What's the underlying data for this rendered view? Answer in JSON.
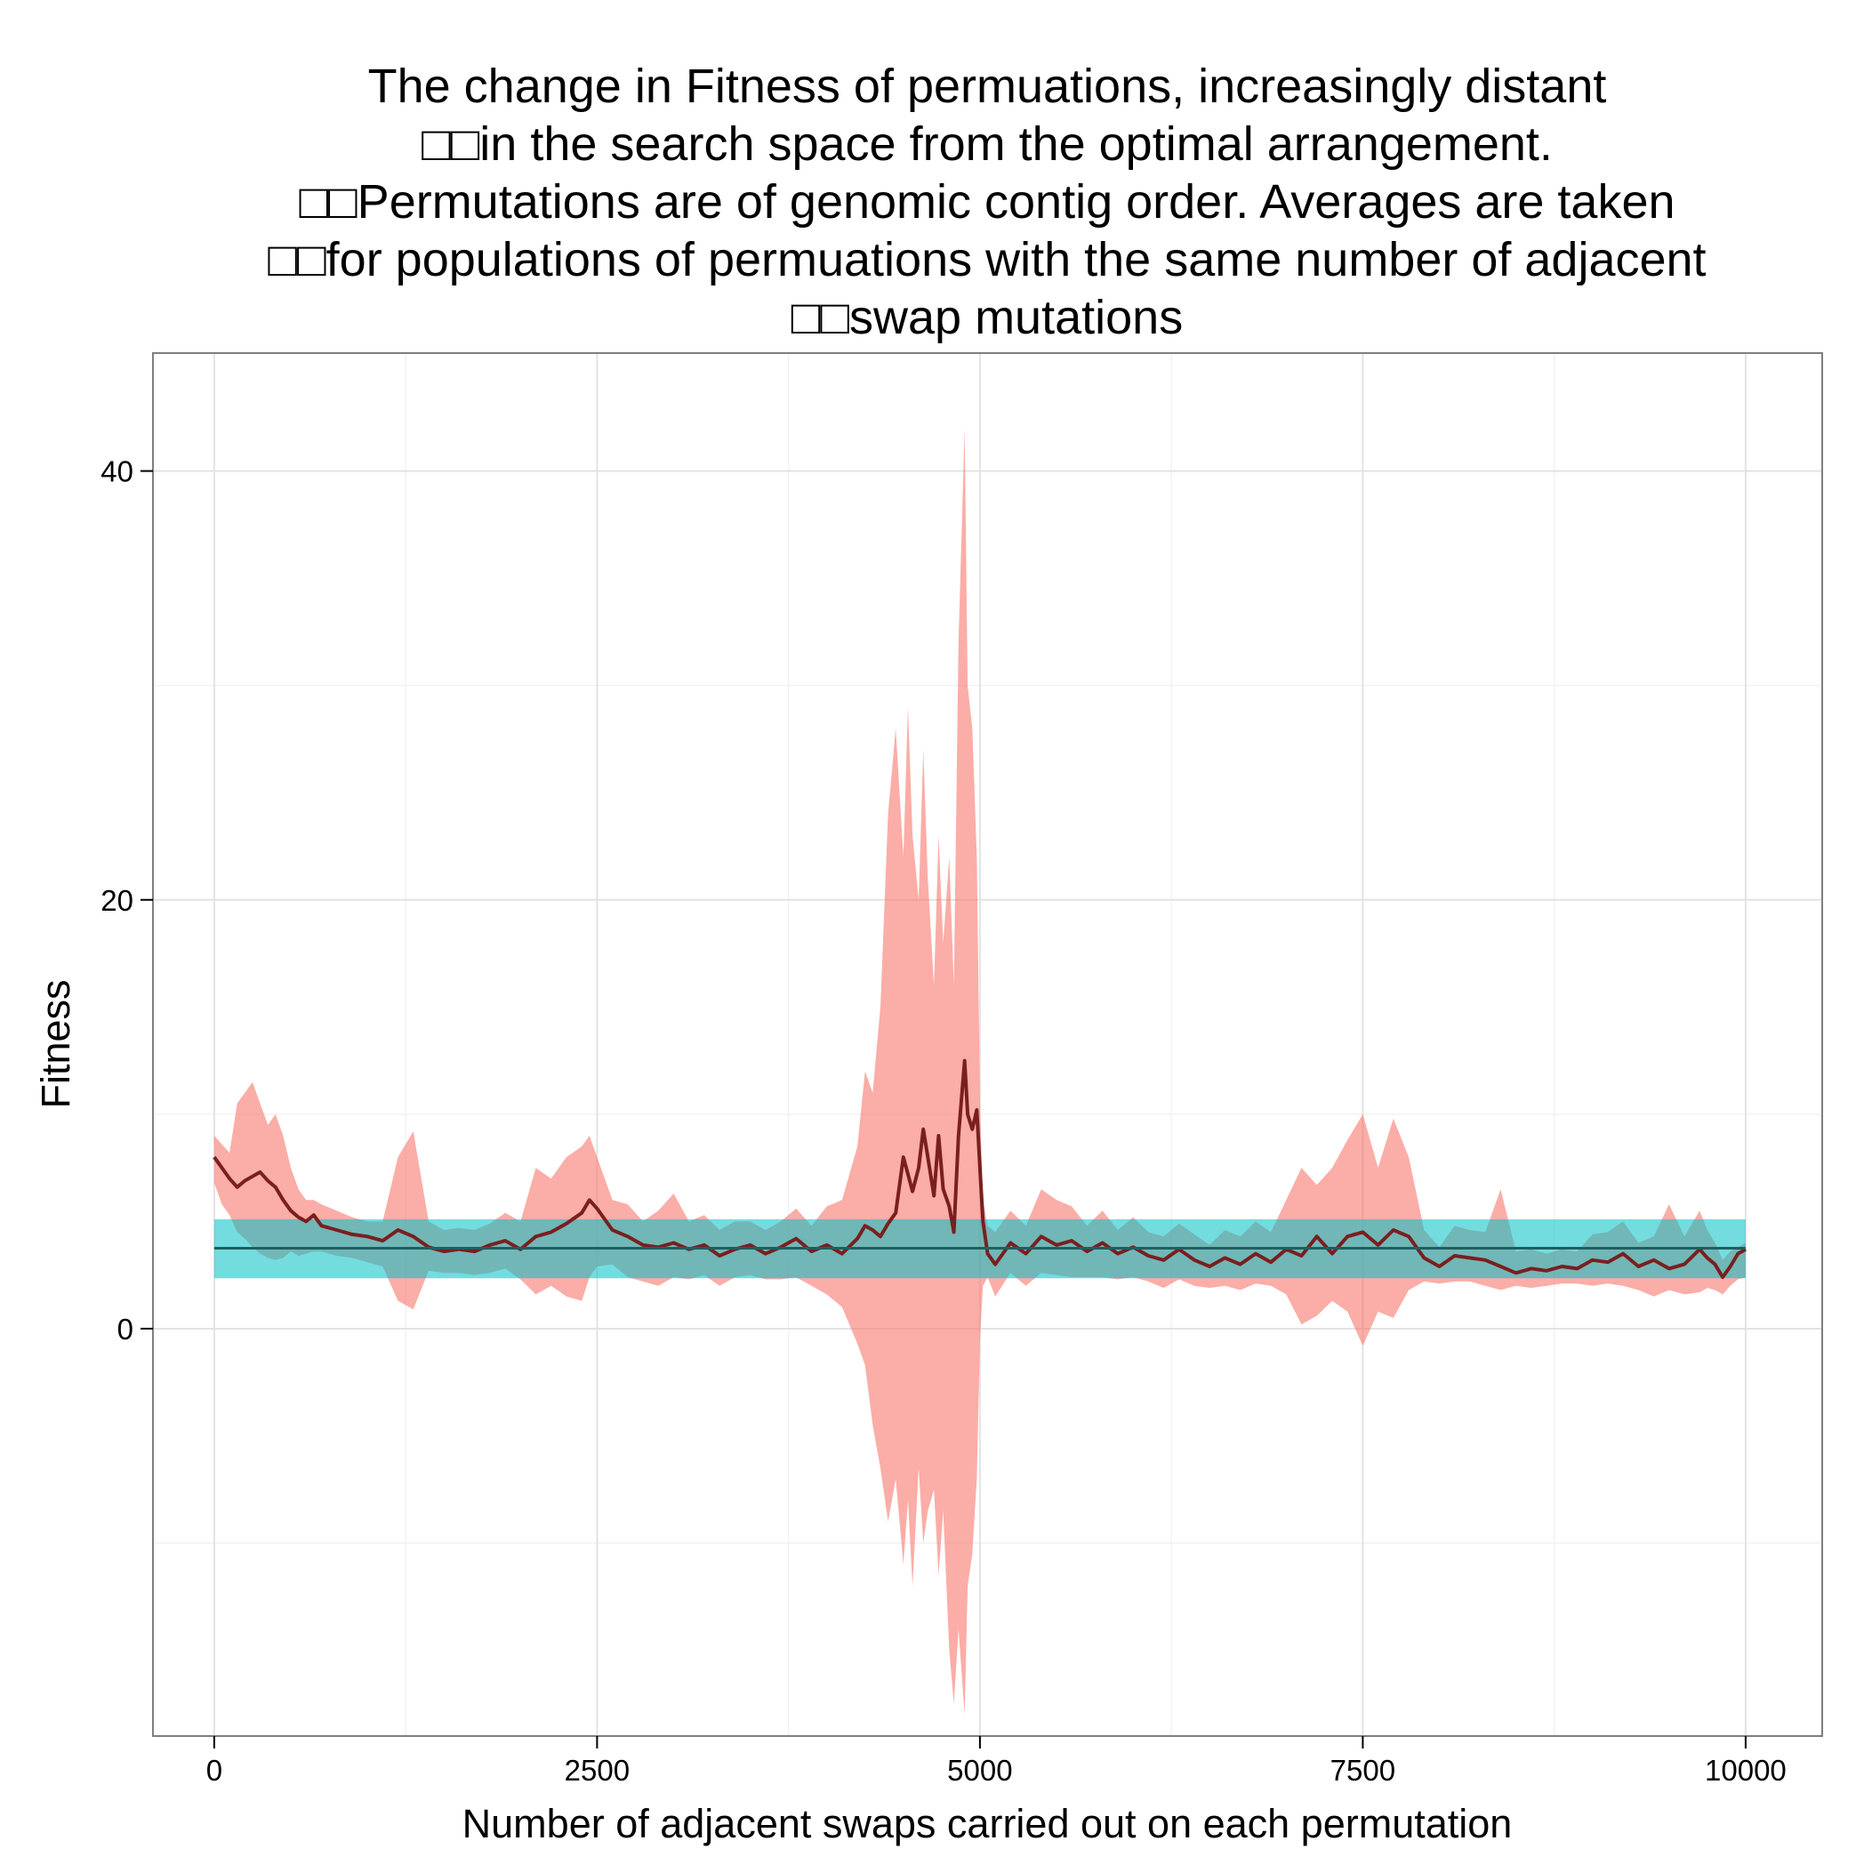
{
  "chart_data": {
    "type": "line",
    "title_lines": [
      "The change in Fitness of permuations, increasingly distant",
      "□□in the search space from the optimal arrangement.",
      "□□Permutations are of genomic contig order. Averages are taken",
      "□□for populations of permuations with the same number of adjacent",
      "□□swap mutations"
    ],
    "xlabel": "Number of adjacent swaps carried out on each permutation",
    "ylabel": "Fitness",
    "xlim": [
      -400,
      10500
    ],
    "ylim": [
      -19,
      45.5
    ],
    "x_ticks": [
      0,
      2500,
      5000,
      7500,
      10000
    ],
    "y_ticks": [
      0,
      20,
      40
    ],
    "grid": true,
    "legend": "none",
    "colors": {
      "ribbon": "#f8766d",
      "line": "#7a1f1f",
      "overall_band": "#00bfc4",
      "overall_line": "#1f5f5f"
    },
    "overall_mean": {
      "value": 3.75,
      "lower": 2.35,
      "upper": 5.1,
      "x_range": [
        0,
        10000
      ]
    },
    "series": [
      {
        "x": [
          0,
          50,
          100,
          150,
          200,
          250,
          300,
          350,
          400,
          450,
          500,
          550,
          600,
          650,
          700,
          800,
          900,
          1000,
          1100,
          1200,
          1300,
          1400,
          1500,
          1600,
          1700,
          1800,
          1900,
          2000,
          2100,
          2200,
          2300,
          2400,
          2450,
          2500,
          2600,
          2700,
          2800,
          2900,
          3000,
          3100,
          3200,
          3300,
          3400,
          3500,
          3600,
          3700,
          3800,
          3900,
          4000,
          4100,
          4200,
          4250,
          4300,
          4350,
          4400,
          4450,
          4500,
          4530,
          4560,
          4600,
          4630,
          4660,
          4700,
          4730,
          4760,
          4800,
          4830,
          4860,
          4900,
          4920,
          4950,
          4980,
          5000,
          5020,
          5050,
          5100,
          5200,
          5300,
          5400,
          5500,
          5600,
          5700,
          5800,
          5900,
          6000,
          6100,
          6200,
          6300,
          6400,
          6500,
          6600,
          6700,
          6800,
          6900,
          7000,
          7100,
          7200,
          7300,
          7400,
          7500,
          7600,
          7700,
          7800,
          7900,
          8000,
          8100,
          8200,
          8300,
          8400,
          8500,
          8600,
          8700,
          8800,
          8900,
          9000,
          9100,
          9200,
          9300,
          9400,
          9500,
          9600,
          9700,
          9750,
          9800,
          9850,
          9900,
          9950,
          10000
        ],
        "mean": [
          8.0,
          7.5,
          7.0,
          6.6,
          6.9,
          7.1,
          7.3,
          6.9,
          6.6,
          6.0,
          5.5,
          5.2,
          5.0,
          5.3,
          4.8,
          4.6,
          4.4,
          4.3,
          4.1,
          4.6,
          4.3,
          3.8,
          3.6,
          3.7,
          3.6,
          3.9,
          4.1,
          3.7,
          4.3,
          4.5,
          4.9,
          5.4,
          6.0,
          5.6,
          4.6,
          4.3,
          3.9,
          3.8,
          4.0,
          3.7,
          3.9,
          3.4,
          3.7,
          3.9,
          3.5,
          3.8,
          4.2,
          3.6,
          3.9,
          3.5,
          4.2,
          4.8,
          4.6,
          4.3,
          4.9,
          5.4,
          8.0,
          7.2,
          6.4,
          7.5,
          9.3,
          8.0,
          6.2,
          9.0,
          6.5,
          5.7,
          4.5,
          9.0,
          12.5,
          10.0,
          9.3,
          10.2,
          7.5,
          5.0,
          3.5,
          3.0,
          4.0,
          3.5,
          4.3,
          3.9,
          4.1,
          3.6,
          4.0,
          3.5,
          3.8,
          3.4,
          3.2,
          3.7,
          3.2,
          2.9,
          3.3,
          3.0,
          3.5,
          3.1,
          3.7,
          3.4,
          4.3,
          3.5,
          4.3,
          4.5,
          3.9,
          4.6,
          4.3,
          3.3,
          2.9,
          3.4,
          3.3,
          3.2,
          2.9,
          2.6,
          2.8,
          2.7,
          2.9,
          2.8,
          3.2,
          3.1,
          3.5,
          2.9,
          3.2,
          2.8,
          3.0,
          3.7,
          3.3,
          3.0,
          2.4,
          2.9,
          3.5,
          3.7
        ],
        "lower": [
          6.8,
          5.8,
          5.3,
          4.5,
          4.2,
          3.8,
          3.5,
          3.3,
          3.2,
          3.3,
          3.6,
          3.4,
          3.5,
          3.6,
          3.6,
          3.4,
          3.3,
          3.1,
          2.9,
          1.3,
          0.9,
          2.7,
          2.6,
          2.6,
          2.5,
          2.6,
          2.8,
          2.3,
          1.6,
          2.0,
          1.5,
          1.3,
          2.4,
          2.9,
          3.0,
          2.4,
          2.2,
          2.0,
          2.4,
          2.3,
          2.5,
          2.0,
          2.4,
          2.5,
          2.3,
          2.3,
          2.4,
          2.0,
          1.6,
          1.0,
          -0.7,
          -1.7,
          -4.5,
          -6.5,
          -9.0,
          -7.0,
          -11.0,
          -8.0,
          -12.0,
          -6.5,
          -10.0,
          -8.5,
          -7.5,
          -11.5,
          -8.5,
          -15.0,
          -17.5,
          -14.0,
          -18.0,
          -12.0,
          -10.5,
          -7.0,
          -0.5,
          2.0,
          2.4,
          1.5,
          2.6,
          2.0,
          2.6,
          2.5,
          2.4,
          2.4,
          2.4,
          2.3,
          2.4,
          2.2,
          1.9,
          2.3,
          2.0,
          1.9,
          2.0,
          1.8,
          2.1,
          2.0,
          1.6,
          0.2,
          0.6,
          1.3,
          0.8,
          -0.8,
          0.8,
          0.5,
          1.8,
          2.2,
          2.1,
          2.2,
          2.2,
          2.0,
          1.8,
          2.0,
          1.9,
          2.0,
          2.1,
          2.1,
          2.0,
          2.1,
          2.0,
          1.8,
          1.5,
          1.8,
          1.6,
          1.7,
          1.9,
          1.8,
          1.6,
          2.0,
          2.3,
          2.4
        ],
        "upper": [
          9.0,
          8.6,
          8.2,
          10.5,
          11.0,
          11.5,
          10.5,
          9.5,
          10.0,
          9.0,
          7.5,
          6.5,
          6.0,
          6.0,
          5.8,
          5.5,
          5.2,
          5.0,
          5.0,
          8.0,
          9.2,
          5.0,
          4.6,
          4.7,
          4.6,
          4.9,
          5.4,
          5.0,
          7.5,
          7.0,
          8.0,
          8.5,
          9.0,
          8.0,
          6.0,
          5.8,
          5.0,
          5.5,
          6.3,
          5.0,
          5.3,
          4.6,
          5.0,
          5.0,
          4.6,
          5.0,
          5.6,
          4.8,
          5.7,
          6.0,
          8.5,
          12.0,
          11.0,
          15.0,
          24.0,
          28.0,
          22.0,
          29.0,
          23.0,
          20.0,
          27.0,
          21.0,
          16.0,
          23.0,
          18.0,
          22.0,
          16.0,
          32.0,
          42.0,
          30.0,
          28.0,
          22.0,
          10.5,
          6.0,
          4.8,
          4.5,
          5.5,
          4.8,
          6.5,
          6.0,
          5.7,
          4.8,
          5.5,
          4.6,
          5.2,
          4.5,
          4.3,
          4.9,
          4.4,
          3.9,
          4.6,
          4.3,
          5.0,
          4.5,
          6.0,
          7.5,
          6.7,
          7.5,
          8.8,
          10.0,
          7.5,
          9.8,
          8.0,
          4.6,
          3.8,
          4.8,
          4.6,
          4.5,
          6.5,
          3.6,
          3.7,
          3.5,
          3.7,
          3.6,
          4.4,
          4.5,
          5.0,
          4.0,
          4.3,
          5.8,
          4.3,
          5.5,
          4.6,
          4.0,
          3.2,
          3.6,
          3.8,
          4.0
        ]
      }
    ]
  }
}
